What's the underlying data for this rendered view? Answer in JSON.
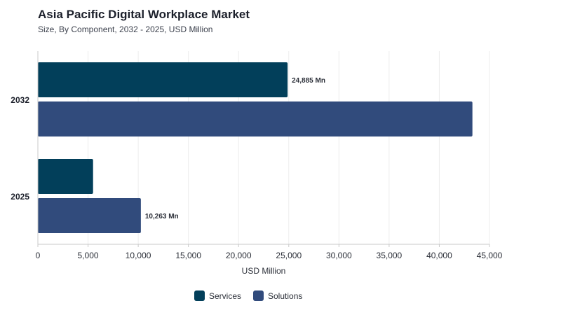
{
  "header": {
    "title": "Asia Pacific Digital Workplace Market",
    "subtitle": "Size, By Component, 2032 - 2025, USD Million"
  },
  "chart_data": {
    "type": "bar",
    "orientation": "horizontal",
    "categories": [
      "2032",
      "2025"
    ],
    "series": [
      {
        "name": "Services",
        "color": "#023f5a",
        "values": [
          24885,
          5500
        ]
      },
      {
        "name": "Solutions",
        "color": "#314b7c",
        "values": [
          43300,
          10263
        ]
      }
    ],
    "data_labels": [
      {
        "series": "Services",
        "category": "2032",
        "text": "24,885 Mn"
      },
      {
        "series": "Solutions",
        "category": "2025",
        "text": "10,263 Mn"
      }
    ],
    "xlim": [
      0,
      45000
    ],
    "xticks": [
      0,
      5000,
      10000,
      15000,
      20000,
      25000,
      30000,
      35000,
      40000,
      45000
    ],
    "xtick_labels": [
      "0",
      "5,000",
      "10,000",
      "15,000",
      "20,000",
      "25,000",
      "30,000",
      "35,000",
      "40,000",
      "45,000"
    ],
    "xlabel": "USD Million",
    "ylabel": "",
    "grid": "vertical",
    "legend": "bottom-center"
  }
}
